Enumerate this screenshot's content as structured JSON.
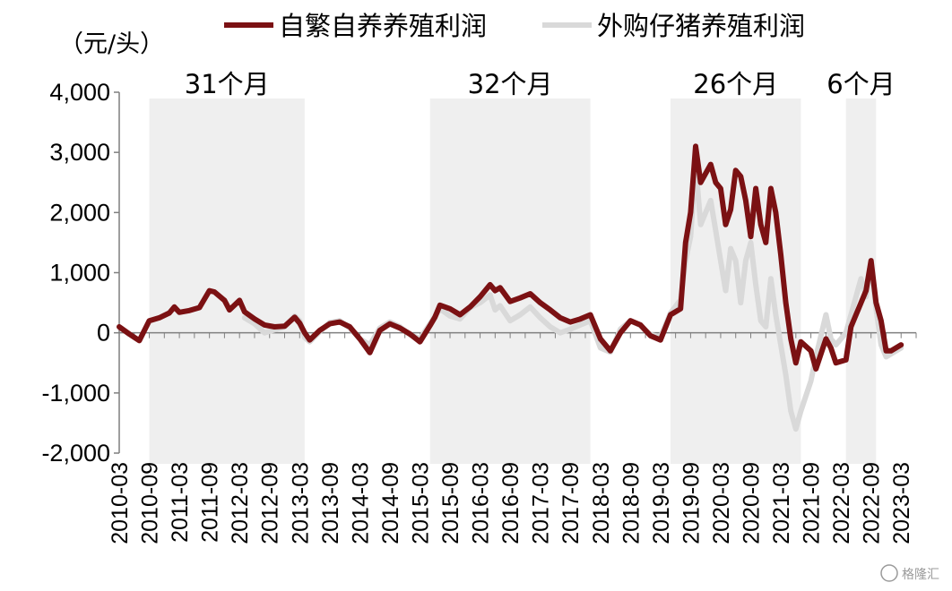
{
  "chart_data": {
    "type": "line",
    "unit_label": "（元/头）",
    "ylim": [
      -2000,
      4000
    ],
    "y_ticks": [
      -2000,
      -1000,
      0,
      1000,
      2000,
      3000,
      4000
    ],
    "y_tick_labels": [
      "-2,000",
      "-1,000",
      "0",
      "1,000",
      "2,000",
      "3,000",
      "4,000"
    ],
    "x_range": [
      "2010-03",
      "2023-06"
    ],
    "x_ticks": [
      "2010-03",
      "2010-09",
      "2011-03",
      "2011-09",
      "2012-03",
      "2012-09",
      "2013-03",
      "2013-09",
      "2014-03",
      "2014-09",
      "2015-03",
      "2015-09",
      "2016-03",
      "2016-09",
      "2017-03",
      "2017-09",
      "2018-03",
      "2018-09",
      "2019-03",
      "2019-09",
      "2020-03",
      "2020-09",
      "2021-03",
      "2021-09",
      "2022-03",
      "2022-09",
      "2023-03"
    ],
    "legend_position": "top",
    "grid": false,
    "shaded_periods": [
      {
        "start": "2010-09",
        "end": "2013-04",
        "label": "31个月"
      },
      {
        "start": "2015-05",
        "end": "2018-01",
        "label": "32个月"
      },
      {
        "start": "2019-05",
        "end": "2021-07",
        "label": "26个月"
      },
      {
        "start": "2022-04",
        "end": "2022-10",
        "label": "6个月"
      }
    ],
    "series": [
      {
        "name": "自繁自养养殖利润",
        "color": "#7b1113",
        "points": [
          [
            "2010-03",
            100
          ],
          [
            "2010-05",
            -20
          ],
          [
            "2010-07",
            -130
          ],
          [
            "2010-09",
            200
          ],
          [
            "2010-11",
            250
          ],
          [
            "2011-01",
            330
          ],
          [
            "2011-02",
            430
          ],
          [
            "2011-03",
            340
          ],
          [
            "2011-05",
            370
          ],
          [
            "2011-07",
            420
          ],
          [
            "2011-09",
            700
          ],
          [
            "2011-10",
            680
          ],
          [
            "2011-12",
            540
          ],
          [
            "2012-01",
            380
          ],
          [
            "2012-03",
            540
          ],
          [
            "2012-04",
            350
          ],
          [
            "2012-06",
            230
          ],
          [
            "2012-08",
            130
          ],
          [
            "2012-10",
            100
          ],
          [
            "2012-12",
            110
          ],
          [
            "2013-02",
            260
          ],
          [
            "2013-03",
            160
          ],
          [
            "2013-04",
            0
          ],
          [
            "2013-05",
            -120
          ],
          [
            "2013-07",
            40
          ],
          [
            "2013-09",
            150
          ],
          [
            "2013-11",
            180
          ],
          [
            "2014-01",
            100
          ],
          [
            "2014-03",
            -100
          ],
          [
            "2014-05",
            -330
          ],
          [
            "2014-07",
            40
          ],
          [
            "2014-09",
            150
          ],
          [
            "2014-11",
            80
          ],
          [
            "2015-01",
            -20
          ],
          [
            "2015-03",
            -150
          ],
          [
            "2015-05",
            120
          ],
          [
            "2015-06",
            260
          ],
          [
            "2015-07",
            460
          ],
          [
            "2015-09",
            400
          ],
          [
            "2015-11",
            300
          ],
          [
            "2016-01",
            430
          ],
          [
            "2016-03",
            600
          ],
          [
            "2016-05",
            800
          ],
          [
            "2016-06",
            700
          ],
          [
            "2016-07",
            750
          ],
          [
            "2016-09",
            520
          ],
          [
            "2016-11",
            580
          ],
          [
            "2017-01",
            650
          ],
          [
            "2017-03",
            500
          ],
          [
            "2017-05",
            380
          ],
          [
            "2017-07",
            250
          ],
          [
            "2017-09",
            180
          ],
          [
            "2017-11",
            230
          ],
          [
            "2018-01",
            300
          ],
          [
            "2018-03",
            -100
          ],
          [
            "2018-05",
            -300
          ],
          [
            "2018-07",
            0
          ],
          [
            "2018-09",
            200
          ],
          [
            "2018-11",
            130
          ],
          [
            "2019-01",
            -50
          ],
          [
            "2019-03",
            -120
          ],
          [
            "2019-05",
            300
          ],
          [
            "2019-07",
            400
          ],
          [
            "2019-08",
            1500
          ],
          [
            "2019-09",
            2000
          ],
          [
            "2019-10",
            3100
          ],
          [
            "2019-11",
            2500
          ],
          [
            "2020-01",
            2800
          ],
          [
            "2020-02",
            2500
          ],
          [
            "2020-03",
            2400
          ],
          [
            "2020-04",
            1800
          ],
          [
            "2020-05",
            2050
          ],
          [
            "2020-06",
            2700
          ],
          [
            "2020-07",
            2600
          ],
          [
            "2020-08",
            2200
          ],
          [
            "2020-09",
            1600
          ],
          [
            "2020-10",
            2400
          ],
          [
            "2020-11",
            1800
          ],
          [
            "2020-12",
            1500
          ],
          [
            "2021-01",
            2400
          ],
          [
            "2021-02",
            2000
          ],
          [
            "2021-03",
            1300
          ],
          [
            "2021-04",
            500
          ],
          [
            "2021-05",
            -100
          ],
          [
            "2021-06",
            -500
          ],
          [
            "2021-07",
            -150
          ],
          [
            "2021-09",
            -300
          ],
          [
            "2021-10",
            -600
          ],
          [
            "2021-12",
            -100
          ],
          [
            "2022-01",
            -250
          ],
          [
            "2022-02",
            -500
          ],
          [
            "2022-04",
            -450
          ],
          [
            "2022-05",
            100
          ],
          [
            "2022-07",
            500
          ],
          [
            "2022-08",
            700
          ],
          [
            "2022-09",
            1200
          ],
          [
            "2022-10",
            500
          ],
          [
            "2022-11",
            200
          ],
          [
            "2022-12",
            -300
          ],
          [
            "2023-01",
            -300
          ],
          [
            "2023-03",
            -200
          ]
        ]
      },
      {
        "name": "外购仔猪养殖利润",
        "color": "#d9d9d9",
        "points": [
          [
            "2012-04",
            250
          ],
          [
            "2012-06",
            150
          ],
          [
            "2012-08",
            0
          ],
          [
            "2012-10",
            50
          ],
          [
            "2012-12",
            100
          ],
          [
            "2013-02",
            280
          ],
          [
            "2013-03",
            200
          ],
          [
            "2013-04",
            -80
          ],
          [
            "2013-05",
            -150
          ],
          [
            "2013-07",
            20
          ],
          [
            "2013-09",
            170
          ],
          [
            "2013-11",
            200
          ],
          [
            "2014-01",
            80
          ],
          [
            "2014-03",
            -100
          ],
          [
            "2014-05",
            -200
          ],
          [
            "2014-07",
            80
          ],
          [
            "2014-09",
            180
          ],
          [
            "2014-11",
            100
          ],
          [
            "2015-01",
            -30
          ],
          [
            "2015-03",
            -100
          ],
          [
            "2015-05",
            150
          ],
          [
            "2015-07",
            400
          ],
          [
            "2015-09",
            280
          ],
          [
            "2015-11",
            230
          ],
          [
            "2016-01",
            420
          ],
          [
            "2016-03",
            500
          ],
          [
            "2016-05",
            630
          ],
          [
            "2016-06",
            380
          ],
          [
            "2016-07",
            450
          ],
          [
            "2016-09",
            200
          ],
          [
            "2016-11",
            300
          ],
          [
            "2017-01",
            430
          ],
          [
            "2017-03",
            250
          ],
          [
            "2017-05",
            100
          ],
          [
            "2017-07",
            0
          ],
          [
            "2017-09",
            60
          ],
          [
            "2017-11",
            130
          ],
          [
            "2018-01",
            200
          ],
          [
            "2018-03",
            -250
          ],
          [
            "2018-05",
            -320
          ],
          [
            "2018-07",
            60
          ],
          [
            "2018-09",
            200
          ],
          [
            "2018-11",
            120
          ],
          [
            "2019-01",
            -30
          ],
          [
            "2019-03",
            -70
          ],
          [
            "2019-05",
            330
          ],
          [
            "2019-07",
            550
          ],
          [
            "2019-08",
            1200
          ],
          [
            "2019-09",
            1600
          ],
          [
            "2019-10",
            2800
          ],
          [
            "2019-11",
            1800
          ],
          [
            "2020-01",
            2200
          ],
          [
            "2020-02",
            1700
          ],
          [
            "2020-03",
            1200
          ],
          [
            "2020-04",
            700
          ],
          [
            "2020-05",
            1400
          ],
          [
            "2020-06",
            1200
          ],
          [
            "2020-07",
            500
          ],
          [
            "2020-08",
            1200
          ],
          [
            "2020-09",
            1500
          ],
          [
            "2020-10",
            800
          ],
          [
            "2020-11",
            200
          ],
          [
            "2020-12",
            100
          ],
          [
            "2021-01",
            900
          ],
          [
            "2021-02",
            300
          ],
          [
            "2021-03",
            -200
          ],
          [
            "2021-04",
            -700
          ],
          [
            "2021-05",
            -1300
          ],
          [
            "2021-06",
            -1600
          ],
          [
            "2021-07",
            -1300
          ],
          [
            "2021-09",
            -800
          ],
          [
            "2021-10",
            -400
          ],
          [
            "2021-12",
            300
          ],
          [
            "2022-01",
            -100
          ],
          [
            "2022-02",
            -200
          ],
          [
            "2022-04",
            0
          ],
          [
            "2022-05",
            300
          ],
          [
            "2022-07",
            900
          ],
          [
            "2022-08",
            600
          ],
          [
            "2022-09",
            1100
          ],
          [
            "2022-10",
            400
          ],
          [
            "2022-11",
            -200
          ],
          [
            "2022-12",
            -400
          ],
          [
            "2023-01",
            -350
          ],
          [
            "2023-03",
            -250
          ]
        ]
      }
    ]
  },
  "watermark": "格隆汇"
}
